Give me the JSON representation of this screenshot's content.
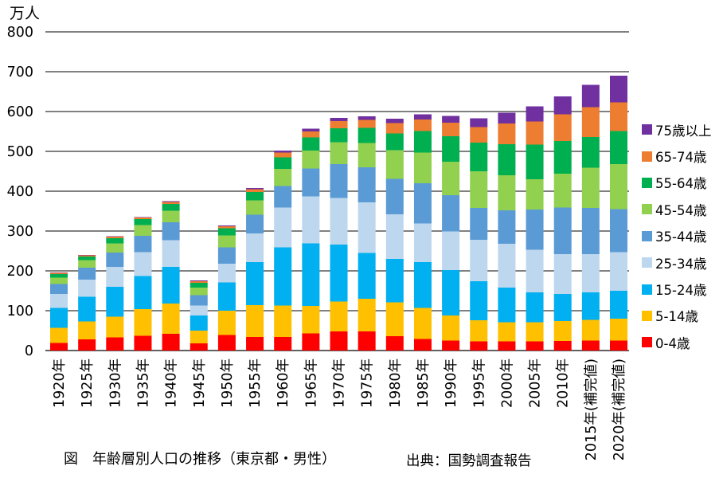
{
  "chart_data": {
    "type": "bar",
    "stacked": true,
    "unit_label": "万人",
    "ylim": [
      0,
      800
    ],
    "yticks": [
      0,
      100,
      200,
      300,
      400,
      500,
      600,
      700,
      800
    ],
    "grid": true,
    "legend_position": "right",
    "categories": [
      "1920年",
      "1925年",
      "1930年",
      "1935年",
      "1940年",
      "1945年",
      "1950年",
      "1955年",
      "1960年",
      "1965年",
      "1970年",
      "1975年",
      "1980年",
      "1985年",
      "1990年",
      "1995年",
      "2000年",
      "2005年",
      "2010年",
      "2015年(補完値)",
      "2020年(補完値)"
    ],
    "series": [
      {
        "name": "0-4歳",
        "color": "#ff0000",
        "values": [
          19,
          28,
          33,
          37,
          42,
          18,
          39,
          34,
          34,
          43,
          48,
          48,
          36,
          29,
          25,
          23,
          23,
          23,
          24,
          25,
          25
        ]
      },
      {
        "name": "5-14歳",
        "color": "#ffc000",
        "values": [
          38,
          45,
          52,
          67,
          76,
          32,
          61,
          80,
          79,
          69,
          75,
          82,
          85,
          78,
          63,
          53,
          48,
          48,
          50,
          52,
          55
        ]
      },
      {
        "name": "15-24歳",
        "color": "#00b0f0",
        "values": [
          50,
          62,
          75,
          83,
          92,
          38,
          71,
          108,
          146,
          157,
          143,
          115,
          109,
          115,
          114,
          98,
          87,
          75,
          68,
          69,
          70
        ]
      },
      {
        "name": "25-34歳",
        "color": "#bdd7ee",
        "values": [
          35,
          43,
          50,
          60,
          67,
          25,
          47,
          72,
          100,
          118,
          117,
          127,
          112,
          97,
          97,
          104,
          110,
          107,
          100,
          96,
          97
        ]
      },
      {
        "name": "35-44歳",
        "color": "#5b9bd5",
        "values": [
          25,
          30,
          36,
          41,
          45,
          26,
          41,
          47,
          54,
          70,
          85,
          88,
          89,
          101,
          91,
          80,
          84,
          101,
          117,
          116,
          108
        ]
      },
      {
        "name": "45-54歳",
        "color": "#92d050",
        "values": [
          16,
          19,
          23,
          27,
          29,
          19,
          30,
          36,
          43,
          45,
          55,
          61,
          72,
          77,
          84,
          92,
          88,
          76,
          85,
          101,
          113
        ]
      },
      {
        "name": "55-64歳",
        "color": "#00b050",
        "values": [
          9,
          9,
          13,
          15,
          17,
          12,
          18,
          21,
          29,
          33,
          35,
          38,
          42,
          54,
          64,
          72,
          78,
          87,
          82,
          77,
          83
        ]
      },
      {
        "name": "65-74歳",
        "color": "#ed7d31",
        "values": [
          3,
          3,
          4,
          4,
          5,
          4,
          5,
          7,
          12,
          15,
          18,
          20,
          26,
          29,
          34,
          39,
          52,
          58,
          67,
          75,
          72
        ]
      },
      {
        "name": "75歳以上",
        "color": "#7030a0",
        "values": [
          1,
          1,
          1,
          1,
          2,
          2,
          2,
          3,
          5,
          7,
          8,
          9,
          11,
          13,
          17,
          22,
          27,
          38,
          45,
          56,
          67
        ]
      }
    ],
    "legend_order": [
      "75歳以上",
      "65-74歳",
      "55-64歳",
      "45-54歳",
      "35-44歳",
      "25-34歳",
      "15-24歳",
      "5-14歳",
      "0-4歳"
    ]
  },
  "caption": "図　年齢層別人口の推移（東京都・男性）",
  "source": "出典：国勢調査報告"
}
